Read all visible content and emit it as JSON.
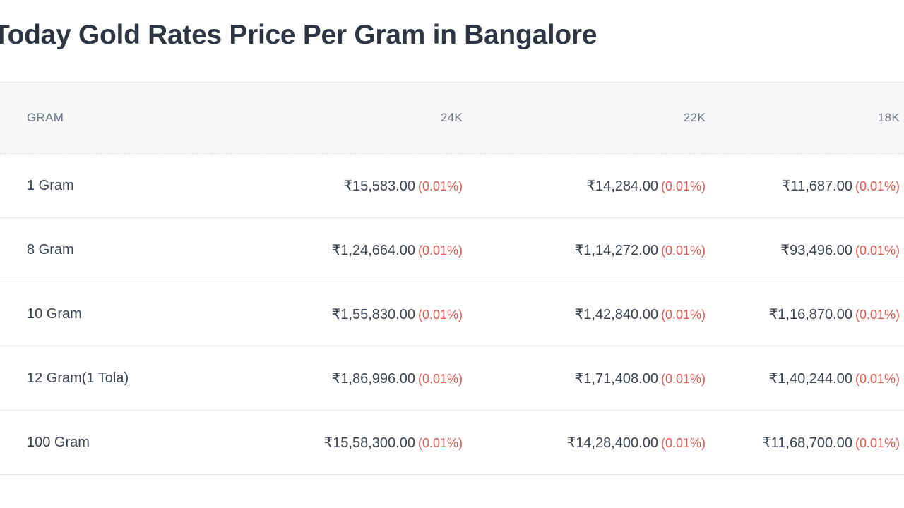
{
  "page": {
    "title": "Today Gold Rates Price Per Gram in Bangalore"
  },
  "table": {
    "headers": {
      "gram": "GRAM",
      "k24": "24K",
      "k22": "22K",
      "k18": "18K"
    },
    "rows": [
      {
        "gram": "1 Gram",
        "k24": {
          "price": "₹15,583.00",
          "change": "(0.01%)"
        },
        "k22": {
          "price": "₹14,284.00",
          "change": "(0.01%)"
        },
        "k18": {
          "price": "₹11,687.00",
          "change": "(0.01%)"
        }
      },
      {
        "gram": "8 Gram",
        "k24": {
          "price": "₹1,24,664.00",
          "change": "(0.01%)"
        },
        "k22": {
          "price": "₹1,14,272.00",
          "change": "(0.01%)"
        },
        "k18": {
          "price": "₹93,496.00",
          "change": "(0.01%)"
        }
      },
      {
        "gram": "10 Gram",
        "k24": {
          "price": "₹1,55,830.00",
          "change": "(0.01%)"
        },
        "k22": {
          "price": "₹1,42,840.00",
          "change": "(0.01%)"
        },
        "k18": {
          "price": "₹1,16,870.00",
          "change": "(0.01%)"
        }
      },
      {
        "gram": "12 Gram(1 Tola)",
        "k24": {
          "price": "₹1,86,996.00",
          "change": "(0.01%)"
        },
        "k22": {
          "price": "₹1,71,408.00",
          "change": "(0.01%)"
        },
        "k18": {
          "price": "₹1,40,244.00",
          "change": "(0.01%)"
        }
      },
      {
        "gram": "100 Gram",
        "k24": {
          "price": "₹15,58,300.00",
          "change": "(0.01%)"
        },
        "k22": {
          "price": "₹14,28,400.00",
          "change": "(0.01%)"
        },
        "k18": {
          "price": "₹11,68,700.00",
          "change": "(0.01%)"
        }
      }
    ]
  },
  "colors": {
    "change_negative": "#e0574f",
    "header_bg": "#f7f7f8",
    "title": "#2f3542"
  }
}
